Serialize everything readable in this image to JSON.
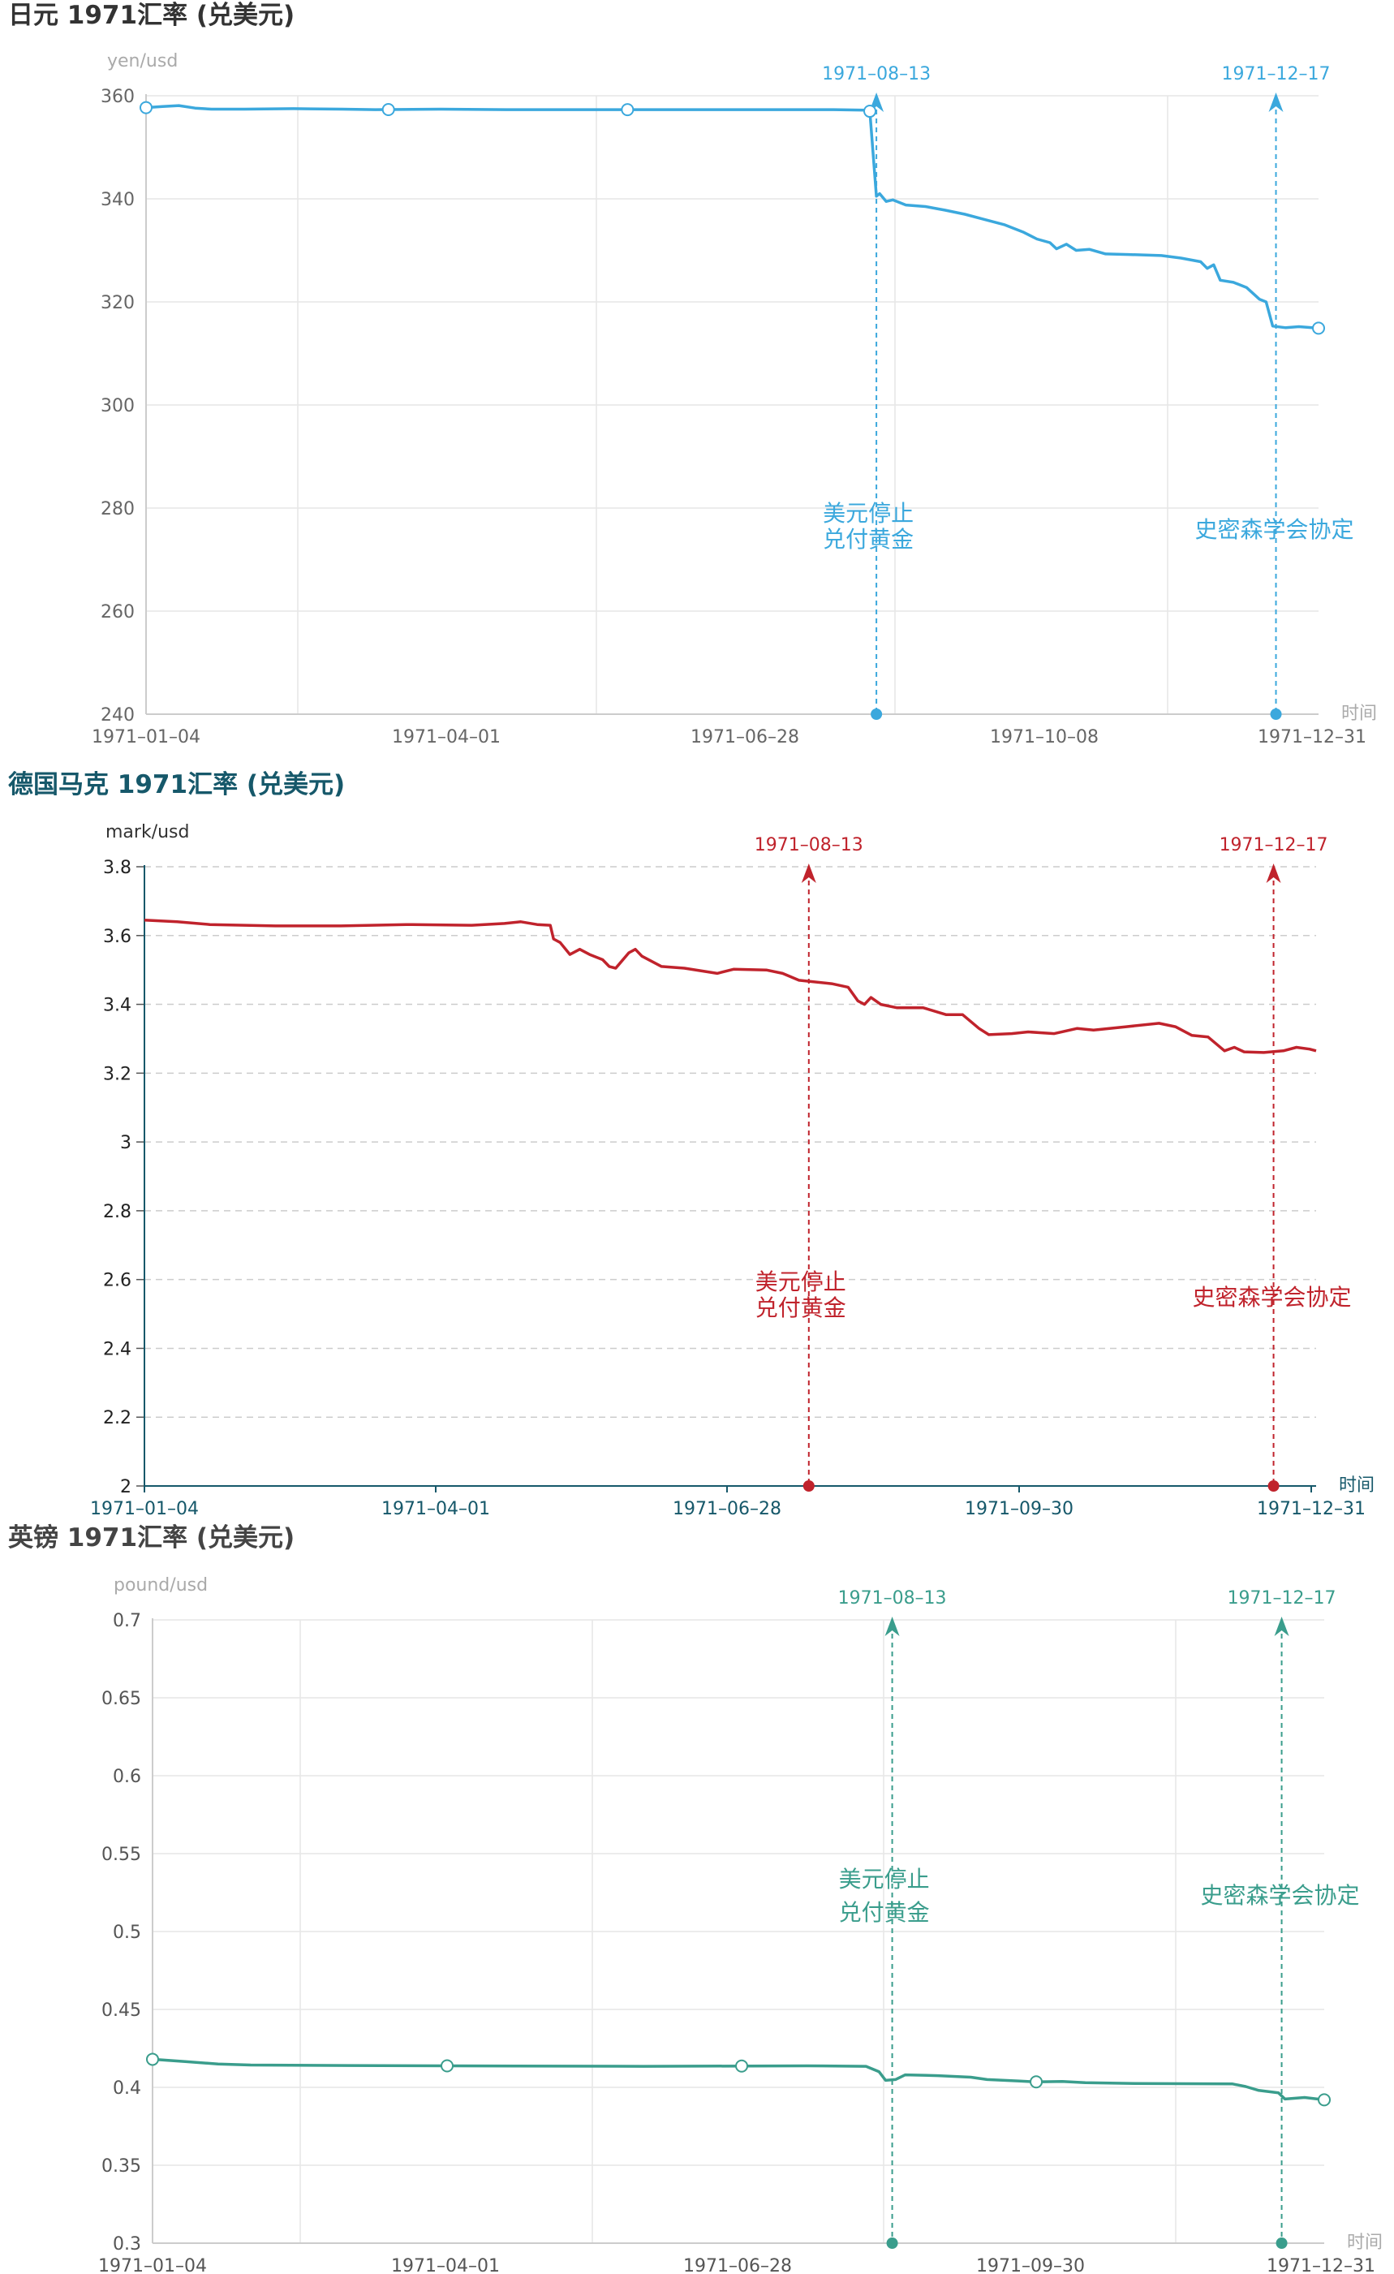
{
  "chart_data": [
    {
      "type": "line",
      "title": "日元 1971汇率 (兑美元)",
      "ylabel": "yen/usd",
      "xlabel": "时间",
      "ylim": [
        240,
        360
      ],
      "yticks": [
        "240",
        "260",
        "280",
        "300",
        "320",
        "340",
        "360"
      ],
      "xtick_labels": [
        "1971–01–04",
        "1971–04–01",
        "1971–06–28",
        "1971–10–08",
        "1971–12–31"
      ],
      "color": "#3ba8dd",
      "grid": "solid",
      "series": [
        {
          "name": "",
          "values": [
            [
              0,
              357.7
            ],
            [
              5,
              357.9
            ],
            [
              10,
              358.1
            ],
            [
              15,
              357.6
            ],
            [
              20,
              357.4
            ],
            [
              30,
              357.4
            ],
            [
              45,
              357.5
            ],
            [
              60,
              357.4
            ],
            [
              70,
              357.3
            ],
            [
              90,
              357.4
            ],
            [
              110,
              357.3
            ],
            [
              140,
              357.3
            ],
            [
              180,
              357.3
            ],
            [
              210,
              357.3
            ],
            [
              220,
              357.2
            ],
            [
              221,
              357.0
            ],
            [
              223,
              340.5
            ],
            [
              224,
              341.0
            ],
            [
              226,
              339.5
            ],
            [
              228,
              339.8
            ],
            [
              232,
              338.8
            ],
            [
              238,
              338.5
            ],
            [
              244,
              337.8
            ],
            [
              250,
              337.0
            ],
            [
              256,
              336.0
            ],
            [
              262,
              335.0
            ],
            [
              268,
              333.5
            ],
            [
              272,
              332.2
            ],
            [
              276,
              331.5
            ],
            [
              278,
              330.3
            ],
            [
              281,
              331.2
            ],
            [
              284,
              330.0
            ],
            [
              288,
              330.2
            ],
            [
              293,
              329.3
            ],
            [
              300,
              329.2
            ],
            [
              310,
              329.0
            ],
            [
              316,
              328.5
            ],
            [
              322,
              327.8
            ],
            [
              324,
              326.5
            ],
            [
              326,
              327.2
            ],
            [
              328,
              324.2
            ],
            [
              332,
              323.8
            ],
            [
              336,
              322.8
            ],
            [
              340,
              320.5
            ],
            [
              342,
              320.0
            ],
            [
              344,
              315.3
            ],
            [
              348,
              315.0
            ],
            [
              352,
              315.2
            ],
            [
              356,
              315.0
            ],
            [
              358,
              314.9
            ]
          ]
        }
      ],
      "markers": [
        {
          "label": "1971–08–13",
          "note": [
            "美元停止",
            "兑付黄金"
          ]
        },
        {
          "label": "1971–12–17",
          "note": [
            "史密森学会协定"
          ]
        }
      ]
    },
    {
      "type": "line",
      "title": "德国马克 1971汇率 (兑美元)",
      "ylabel": "mark/usd",
      "xlabel": "时间",
      "ylim": [
        2,
        3.8
      ],
      "yticks": [
        "2",
        "2.2",
        "2.4",
        "2.6",
        "2.8",
        "3",
        "3.2",
        "3.4",
        "3.6",
        "3.8"
      ],
      "xtick_labels": [
        "1971–01–04",
        "1971–04–01",
        "1971–06–28",
        "1971–09–30",
        "1971–12–31"
      ],
      "color": "#c0232c",
      "grid": "dashed",
      "series": [
        {
          "name": "",
          "values": [
            [
              0,
              3.645
            ],
            [
              10,
              3.64
            ],
            [
              20,
              3.632
            ],
            [
              40,
              3.628
            ],
            [
              60,
              3.628
            ],
            [
              80,
              3.632
            ],
            [
              100,
              3.63
            ],
            [
              110,
              3.635
            ],
            [
              115,
              3.64
            ],
            [
              120,
              3.632
            ],
            [
              124,
              3.63
            ],
            [
              125,
              3.59
            ],
            [
              127,
              3.58
            ],
            [
              130,
              3.545
            ],
            [
              133,
              3.56
            ],
            [
              136,
              3.545
            ],
            [
              140,
              3.53
            ],
            [
              142,
              3.51
            ],
            [
              144,
              3.505
            ],
            [
              148,
              3.55
            ],
            [
              150,
              3.56
            ],
            [
              152,
              3.54
            ],
            [
              158,
              3.51
            ],
            [
              165,
              3.505
            ],
            [
              175,
              3.49
            ],
            [
              180,
              3.502
            ],
            [
              190,
              3.5
            ],
            [
              195,
              3.49
            ],
            [
              200,
              3.47
            ],
            [
              210,
              3.46
            ],
            [
              215,
              3.45
            ],
            [
              218,
              3.41
            ],
            [
              220,
              3.4
            ],
            [
              222,
              3.42
            ],
            [
              225,
              3.4
            ],
            [
              230,
              3.39
            ],
            [
              238,
              3.39
            ],
            [
              245,
              3.37
            ],
            [
              250,
              3.37
            ],
            [
              255,
              3.33
            ],
            [
              258,
              3.312
            ],
            [
              265,
              3.315
            ],
            [
              270,
              3.32
            ],
            [
              278,
              3.315
            ],
            [
              285,
              3.33
            ],
            [
              290,
              3.325
            ],
            [
              300,
              3.335
            ],
            [
              310,
              3.345
            ],
            [
              315,
              3.335
            ],
            [
              320,
              3.31
            ],
            [
              325,
              3.305
            ],
            [
              330,
              3.265
            ],
            [
              333,
              3.275
            ],
            [
              336,
              3.262
            ],
            [
              342,
              3.26
            ],
            [
              348,
              3.265
            ],
            [
              352,
              3.275
            ],
            [
              356,
              3.27
            ],
            [
              358,
              3.265
            ]
          ]
        }
      ],
      "markers": [
        {
          "label": "1971–08–13",
          "note": [
            "美元停止",
            "兑付黄金"
          ]
        },
        {
          "label": "1971–12–17",
          "note": [
            "史密森学会协定"
          ]
        }
      ]
    },
    {
      "type": "line",
      "title": "英镑 1971汇率 (兑美元)",
      "ylabel": "pound/usd",
      "xlabel": "时间",
      "ylim": [
        0.3,
        0.7
      ],
      "yticks": [
        "0.3",
        "0.35",
        "0.4",
        "0.45",
        "0.5",
        "0.55",
        "0.6",
        "0.65",
        "0.7"
      ],
      "xtick_labels": [
        "1971–01–04",
        "1971–04–01",
        "1971–06–28",
        "1971–09–30",
        "1971–12–31"
      ],
      "color": "#3a9d8c",
      "grid": "solid",
      "series": [
        {
          "name": "",
          "values": [
            [
              0,
              0.418
            ],
            [
              10,
              0.4165
            ],
            [
              20,
              0.415
            ],
            [
              30,
              0.4143
            ],
            [
              60,
              0.414
            ],
            [
              90,
              0.4138
            ],
            [
              150,
              0.4135
            ],
            [
              200,
              0.4138
            ],
            [
              218,
              0.4135
            ],
            [
              222,
              0.41
            ],
            [
              224,
              0.4045
            ],
            [
              227,
              0.405
            ],
            [
              230,
              0.408
            ],
            [
              240,
              0.4075
            ],
            [
              250,
              0.4065
            ],
            [
              255,
              0.405
            ],
            [
              265,
              0.404
            ],
            [
              270,
              0.4035
            ],
            [
              278,
              0.4038
            ],
            [
              285,
              0.403
            ],
            [
              300,
              0.4025
            ],
            [
              330,
              0.4022
            ],
            [
              334,
              0.4005
            ],
            [
              338,
              0.398
            ],
            [
              344,
              0.3965
            ],
            [
              346,
              0.3925
            ],
            [
              352,
              0.3935
            ],
            [
              356,
              0.3925
            ],
            [
              358,
              0.392
            ]
          ]
        }
      ],
      "markers": [
        {
          "label": "1971–08–13",
          "note": [
            "美元停止",
            "兑付黄金"
          ]
        },
        {
          "label": "1971–12–17",
          "note": [
            "史密森学会协定"
          ]
        }
      ]
    }
  ]
}
